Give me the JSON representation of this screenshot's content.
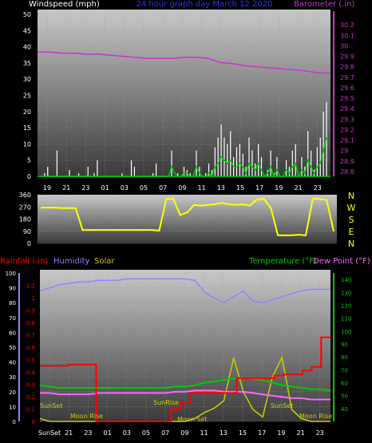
{
  "page": {
    "title_center": "24 hour graph day   March 12 2020"
  },
  "colors": {
    "background": "#000000",
    "wind": "#ffffff",
    "wind_gust": "#cccccc",
    "wind_avg": "#00cc00",
    "barometer": "#cc33cc",
    "direction": "#ffff00",
    "rainfall": "#ff0000",
    "humidity": "#8888ff",
    "solar": "#cccc00",
    "temperature": "#00cc00",
    "dewpoint": "#ff66ff",
    "left_axis": "#8888ff",
    "right_axis_temp": "#00cc00",
    "title": "#3333ff"
  },
  "chart_data": [
    {
      "type": "line",
      "id": "wind_baro",
      "left_label": "Windspeed (mph)",
      "right_label": "Barometer (.in)",
      "x_ticks": [
        "19",
        "21",
        "23",
        "01",
        "03",
        "05",
        "07",
        "09",
        "11",
        "13",
        "15",
        "17",
        "19",
        "21",
        "23"
      ],
      "ylim_left": [
        0,
        50
      ],
      "y_ticks_left": [
        "0",
        "5",
        "10",
        "15",
        "20",
        "25",
        "30",
        "35",
        "40",
        "45",
        "50"
      ],
      "ylim_right": [
        28.8,
        30.3
      ],
      "y_ticks_right": [
        "28.8",
        "28.9",
        "29",
        "29.1",
        "29.2",
        "29.3",
        "29.4",
        "29.5",
        "29.6",
        "29.7",
        "29.8",
        "29.9",
        "30",
        "30.1",
        "30.2"
      ],
      "grid": true,
      "series": [
        {
          "name": "Barometer",
          "axis": "right",
          "color": "#cc33cc",
          "values": [
            29.94,
            29.94,
            29.93,
            29.93,
            29.92,
            29.92,
            29.91,
            29.9,
            29.89,
            29.88,
            29.88,
            29.88,
            29.89,
            29.89,
            29.88,
            29.84,
            29.83,
            29.81,
            29.8,
            29.79,
            29.78,
            29.77,
            29.76,
            29.74,
            29.74
          ]
        },
        {
          "name": "Windspeed",
          "axis": "left",
          "color": "#ffffff",
          "values": [
            0,
            1,
            3,
            0,
            0,
            8,
            0,
            0,
            0,
            2,
            0,
            0,
            1,
            0,
            0,
            3,
            0,
            1,
            5,
            0,
            0,
            0,
            0,
            0,
            0,
            0,
            1,
            0,
            0,
            5,
            3,
            0,
            0,
            0,
            0,
            0,
            1,
            4,
            0,
            0,
            0,
            0,
            8,
            0,
            1,
            0,
            3,
            2,
            1,
            0,
            8,
            3,
            0,
            1,
            4,
            2,
            9,
            12,
            16,
            12,
            10,
            14,
            6,
            9,
            10,
            7,
            3,
            12,
            8,
            4,
            10,
            6,
            0,
            2,
            8,
            1,
            6,
            0,
            0,
            5,
            3,
            8,
            10,
            0,
            6,
            3,
            14,
            8,
            2,
            9,
            12,
            20,
            23
          ]
        },
        {
          "name": "Average",
          "axis": "left",
          "color": "#00cc00",
          "values": [
            0,
            0,
            0,
            0,
            0,
            0,
            0,
            0,
            0,
            0,
            0,
            0,
            0,
            0,
            0,
            0,
            0,
            0,
            0,
            0,
            0,
            0,
            0,
            0,
            0,
            0,
            0,
            0,
            0,
            0,
            0,
            0,
            0,
            0,
            0,
            0,
            0,
            0,
            0,
            0,
            0,
            0,
            3,
            1,
            0,
            0,
            1,
            1,
            0,
            0,
            3,
            1,
            0,
            0,
            1,
            0,
            3,
            4,
            6,
            5,
            4,
            5,
            3,
            3,
            4,
            3,
            1,
            4,
            3,
            2,
            4,
            2,
            0,
            1,
            3,
            0,
            2,
            0,
            0,
            2,
            1,
            3,
            4,
            0,
            2,
            1,
            5,
            3,
            1,
            3,
            4,
            8,
            12
          ]
        }
      ]
    },
    {
      "type": "line",
      "id": "wind_direction",
      "ylim_left": [
        0,
        360
      ],
      "y_ticks_left": [
        "0",
        "90",
        "180",
        "270",
        "360"
      ],
      "compass_labels": [
        "N",
        "W",
        "S",
        "E",
        "N"
      ],
      "grid": true,
      "series": [
        {
          "name": "Direction",
          "color": "#ffff00",
          "values": [
            265,
            265,
            265,
            262,
            262,
            262,
            100,
            100,
            100,
            100,
            100,
            100,
            100,
            100,
            100,
            100,
            100,
            95,
            330,
            330,
            210,
            230,
            285,
            280,
            285,
            290,
            300,
            290,
            285,
            290,
            280,
            325,
            330,
            260,
            60,
            60,
            60,
            65,
            60,
            330,
            330,
            320,
            90
          ]
        }
      ]
    },
    {
      "type": "line",
      "id": "rain_hum_temp",
      "legend": [
        "Rainfall (.in)",
        "Humidity",
        "Solar",
        "Temperature (°F)",
        "Dew Point (°F)"
      ],
      "x_ticks": [
        "SunSet",
        "21",
        "23",
        "01",
        "03",
        "05",
        "07",
        "09",
        "11",
        "13",
        "15",
        "17",
        "19",
        "21",
        "23"
      ],
      "ylim_left": [
        0,
        100
      ],
      "y_ticks_left": [
        "0",
        "10",
        "20",
        "30",
        "40",
        "50",
        "60",
        "70",
        "80",
        "90",
        "100"
      ],
      "ylim_rain": [
        0,
        1.2
      ],
      "y_ticks_rain": [
        "0",
        "0.1",
        "0.2",
        "0.3",
        "0.4",
        "0.5",
        "0.6",
        "0.7",
        "0.8",
        "0.9",
        "1",
        "1.1"
      ],
      "ylim_right": [
        30,
        145
      ],
      "y_ticks_right": [
        "40",
        "50",
        "60",
        "70",
        "80",
        "90",
        "100",
        "110",
        "120",
        "130",
        "140"
      ],
      "annotations": [
        "SunSet",
        "Moon Rise",
        "SunRise",
        "Moon Set",
        "SunSet",
        "Moon Rise"
      ],
      "grid": true,
      "series": [
        {
          "name": "Rainfall",
          "color": "#ff0000",
          "values": [
            0.45,
            0.45,
            0.45,
            0.46,
            0.46,
            0.46,
            0.0,
            0.0,
            0.0,
            0.0,
            0.0,
            0.0,
            0.0,
            0.0,
            0.1,
            0.15,
            0.23,
            0.23,
            0.23,
            0.23,
            0.23,
            0.35,
            0.35,
            0.35,
            0.35,
            0.37,
            0.38,
            0.38,
            0.41,
            0.44,
            0.68
          ]
        },
        {
          "name": "Humidity",
          "color": "#8888ff",
          "values": [
            88,
            90,
            92,
            93,
            94,
            94,
            95,
            95,
            95,
            96,
            96,
            96,
            96,
            96,
            96,
            96,
            95,
            87,
            83,
            80,
            84,
            88,
            81,
            80,
            82,
            84,
            86,
            88,
            89,
            89,
            89
          ]
        },
        {
          "name": "Solar",
          "color": "#cccc00",
          "values": [
            2,
            0,
            0,
            0,
            0,
            0,
            0,
            0,
            0,
            0,
            0,
            0,
            0,
            0,
            0,
            0,
            2,
            6,
            9,
            14,
            43,
            20,
            8,
            3,
            30,
            43,
            8,
            2,
            0,
            0,
            0
          ]
        },
        {
          "name": "Temperature",
          "color": "#00cc00",
          "values": [
            58,
            57,
            56,
            56,
            56,
            56,
            56,
            56,
            56,
            56,
            56,
            56,
            56,
            56,
            57,
            57,
            58,
            60,
            61,
            62,
            63,
            64,
            63,
            62,
            60,
            58,
            57,
            56,
            55,
            55,
            54
          ]
        },
        {
          "name": "Dew Point",
          "color": "#ff66ff",
          "values": [
            52,
            52,
            51,
            51,
            51,
            51,
            52,
            52,
            52,
            52,
            52,
            52,
            52,
            52,
            53,
            53,
            54,
            54,
            54,
            53,
            53,
            53,
            52,
            51,
            50,
            49,
            48,
            48,
            47,
            47,
            47
          ]
        }
      ]
    }
  ]
}
